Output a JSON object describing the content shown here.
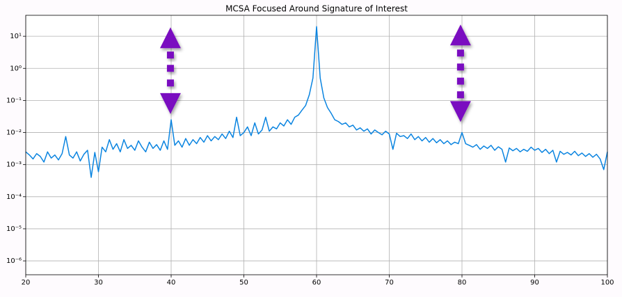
{
  "chart_data": {
    "type": "line",
    "title": "MCSA Focused Around Signature of Interest",
    "log_y": true,
    "grid": true,
    "color": "#0a84e0",
    "xlim": [
      20,
      100
    ],
    "xticks": [
      20,
      30,
      40,
      50,
      60,
      70,
      80,
      90,
      100
    ],
    "ylim": [
      3.7e-07,
      45
    ],
    "yticks": [
      {
        "value": 1e-06,
        "label": "10⁻⁶"
      },
      {
        "value": 1e-05,
        "label": "10⁻⁵"
      },
      {
        "value": 0.0001,
        "label": "10⁻⁴"
      },
      {
        "value": 0.001,
        "label": "10⁻³"
      },
      {
        "value": 0.01,
        "label": "10⁻²"
      },
      {
        "value": 0.1,
        "label": "10⁻¹"
      },
      {
        "value": 1,
        "label": "10⁰"
      },
      {
        "value": 10,
        "label": "10¹"
      }
    ],
    "x": [
      20,
      20.5,
      21,
      21.5,
      22,
      22.5,
      23,
      23.5,
      24,
      24.5,
      25,
      25.5,
      26,
      26.5,
      27,
      27.5,
      28,
      28.5,
      29,
      29.5,
      30,
      30.5,
      31,
      31.5,
      32,
      32.5,
      33,
      33.5,
      34,
      34.5,
      35,
      35.5,
      36,
      36.5,
      37,
      37.5,
      38,
      38.5,
      39,
      39.5,
      40,
      40.5,
      41,
      41.5,
      42,
      42.5,
      43,
      43.5,
      44,
      44.5,
      45,
      45.5,
      46,
      46.5,
      47,
      47.5,
      48,
      48.5,
      49,
      49.5,
      50,
      50.5,
      51,
      51.5,
      52,
      52.5,
      53,
      53.5,
      54,
      54.5,
      55,
      55.5,
      56,
      56.5,
      57,
      57.5,
      58,
      58.5,
      59,
      59.5,
      60,
      60.5,
      61,
      61.5,
      62,
      62.5,
      63,
      63.5,
      64,
      64.5,
      65,
      65.5,
      66,
      66.5,
      67,
      67.5,
      68,
      68.5,
      69,
      69.5,
      70,
      70.5,
      71,
      71.5,
      72,
      72.5,
      73,
      73.5,
      74,
      74.5,
      75,
      75.5,
      76,
      76.5,
      77,
      77.5,
      78,
      78.5,
      79,
      79.5,
      80,
      80.5,
      81,
      81.5,
      82,
      82.5,
      83,
      83.5,
      84,
      84.5,
      85,
      85.5,
      86,
      86.5,
      87,
      87.5,
      88,
      88.5,
      89,
      89.5,
      90,
      90.5,
      91,
      91.5,
      92,
      92.5,
      93,
      93.5,
      94,
      94.5,
      95,
      95.5,
      96,
      96.5,
      97,
      97.5,
      98,
      98.5,
      99,
      99.5,
      100
    ],
    "values": [
      0.0025,
      0.002,
      0.0015,
      0.0022,
      0.0018,
      0.0012,
      0.0025,
      0.0016,
      0.002,
      0.0014,
      0.0022,
      0.0075,
      0.002,
      0.0016,
      0.0025,
      0.0013,
      0.0021,
      0.0028,
      0.0004,
      0.0024,
      0.0006,
      0.0035,
      0.0025,
      0.006,
      0.003,
      0.0045,
      0.0025,
      0.006,
      0.0032,
      0.004,
      0.0028,
      0.0055,
      0.0035,
      0.0025,
      0.005,
      0.0032,
      0.0042,
      0.0028,
      0.0055,
      0.003,
      0.025,
      0.004,
      0.0055,
      0.0035,
      0.0065,
      0.004,
      0.006,
      0.0045,
      0.007,
      0.005,
      0.008,
      0.0055,
      0.0075,
      0.006,
      0.009,
      0.0065,
      0.011,
      0.007,
      0.03,
      0.008,
      0.01,
      0.015,
      0.008,
      0.02,
      0.009,
      0.012,
      0.03,
      0.011,
      0.015,
      0.013,
      0.02,
      0.016,
      0.025,
      0.018,
      0.03,
      0.035,
      0.05,
      0.07,
      0.15,
      0.5,
      20,
      0.5,
      0.12,
      0.06,
      0.04,
      0.025,
      0.022,
      0.018,
      0.02,
      0.015,
      0.017,
      0.012,
      0.014,
      0.011,
      0.013,
      0.009,
      0.012,
      0.01,
      0.0085,
      0.011,
      0.009,
      0.003,
      0.0095,
      0.0075,
      0.008,
      0.0065,
      0.009,
      0.006,
      0.0075,
      0.0055,
      0.007,
      0.005,
      0.0065,
      0.0048,
      0.006,
      0.0045,
      0.0055,
      0.0042,
      0.005,
      0.0045,
      0.01,
      0.0045,
      0.004,
      0.0035,
      0.0042,
      0.003,
      0.0038,
      0.0032,
      0.004,
      0.0028,
      0.0036,
      0.003,
      0.0012,
      0.0033,
      0.0027,
      0.0032,
      0.0025,
      0.003,
      0.0026,
      0.0035,
      0.0028,
      0.0032,
      0.0024,
      0.003,
      0.0022,
      0.0028,
      0.0012,
      0.0026,
      0.0021,
      0.0024,
      0.002,
      0.0026,
      0.0019,
      0.0023,
      0.0018,
      0.0022,
      0.0017,
      0.0021,
      0.0015,
      0.0007,
      0.0025
    ],
    "marker_color": "#7a0fc0",
    "arrows": [
      {
        "x": 39.9,
        "top": 9,
        "bottom": 0.08,
        "dots": [
          2.6,
          1,
          0.35
        ]
      },
      {
        "x": 79.8,
        "top": 11,
        "bottom": 0.045,
        "dots": [
          3,
          1.1,
          0.4,
          0.15
        ]
      }
    ]
  }
}
